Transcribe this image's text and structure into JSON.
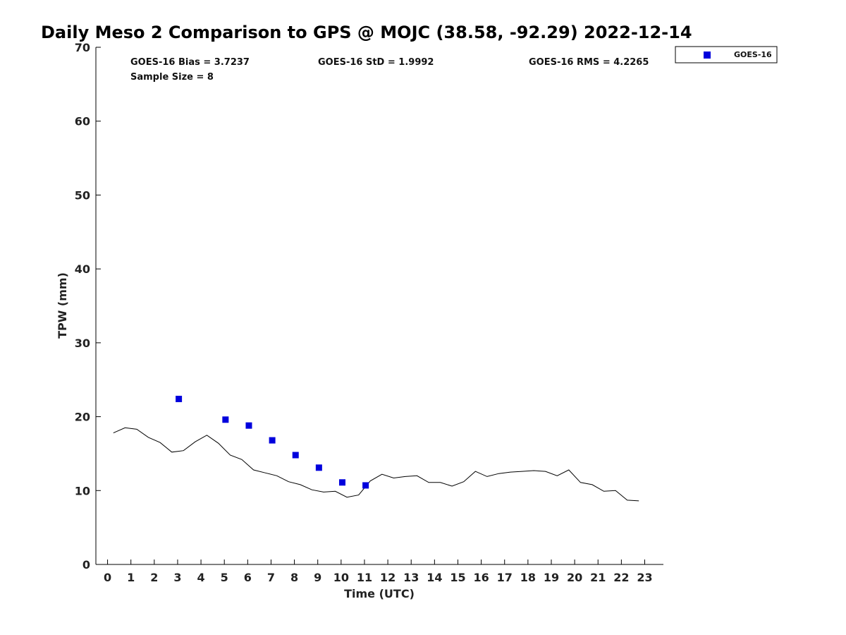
{
  "chart_data": {
    "type": "scatter",
    "title": "Daily Meso 2 Comparison to GPS @ MOJC (38.58, -92.29) 2022-12-14",
    "xlabel": "Time (UTC)",
    "ylabel": "TPW (mm)",
    "xlim": [
      -0.5,
      23.8
    ],
    "ylim": [
      0,
      70
    ],
    "xticks": [
      "0",
      "1",
      "2",
      "3",
      "4",
      "5",
      "6",
      "7",
      "8",
      "9",
      "10",
      "11",
      "12",
      "13",
      "14",
      "15",
      "16",
      "17",
      "18",
      "19",
      "20",
      "21",
      "22",
      "23"
    ],
    "yticks": [
      "0",
      "10",
      "20",
      "30",
      "40",
      "50",
      "60",
      "70"
    ],
    "grid": false,
    "legend_position": "top-right",
    "stats": {
      "bias": "GOES-16 Bias = 3.7237",
      "std": "GOES-16 StD = 1.9992",
      "rms": "GOES-16 RMS = 4.2265",
      "sample": "Sample Size = 8"
    },
    "series": [
      {
        "name": "GOES-16",
        "kind": "scatter",
        "color": "#0000dd",
        "marker": "square",
        "x": [
          3.05,
          5.05,
          6.05,
          7.05,
          8.05,
          9.05,
          10.05,
          11.05
        ],
        "y": [
          22.4,
          19.6,
          18.8,
          16.8,
          14.8,
          13.1,
          11.1,
          10.7
        ]
      },
      {
        "kind": "line",
        "color": "#000000",
        "x": [
          0.25,
          0.75,
          1.25,
          1.75,
          2.25,
          2.75,
          3.25,
          3.75,
          4.25,
          4.75,
          5.25,
          5.75,
          6.25,
          6.75,
          7.25,
          7.75,
          8.25,
          8.75,
          9.25,
          9.75,
          10.25,
          10.75,
          11.25,
          11.75,
          12.25,
          12.75,
          13.25,
          13.75,
          14.25,
          14.75,
          15.25,
          15.75,
          16.25,
          16.75,
          17.25,
          17.75,
          18.25,
          18.75,
          19.25,
          19.75,
          20.25,
          20.75,
          21.25,
          21.75,
          22.25,
          22.75
        ],
        "y": [
          17.8,
          18.5,
          18.3,
          17.2,
          16.5,
          15.2,
          15.4,
          16.6,
          17.5,
          16.4,
          14.8,
          14.2,
          12.8,
          12.4,
          12.0,
          11.2,
          10.8,
          10.1,
          9.8,
          9.9,
          9.1,
          9.4,
          11.3,
          12.2,
          11.7,
          11.9,
          12.0,
          11.1,
          11.1,
          10.6,
          11.2,
          12.6,
          11.9,
          12.3,
          12.5,
          12.6,
          12.7,
          12.6,
          12.0,
          12.8,
          11.1,
          10.8,
          9.9,
          10.0,
          8.7,
          8.6
        ]
      }
    ]
  }
}
